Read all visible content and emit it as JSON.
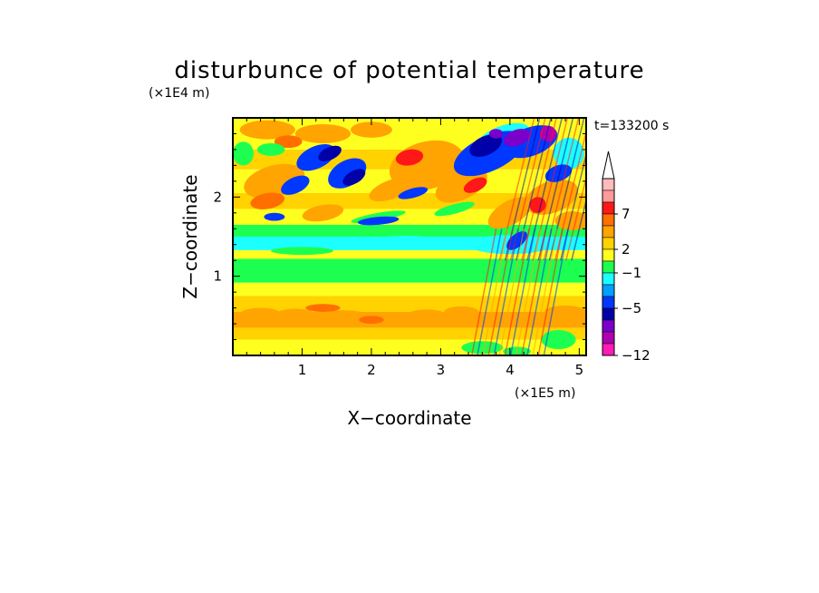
{
  "chart_data": {
    "type": "heatmap",
    "title": "disturbunce of potential temperature",
    "xlabel": "X−coordinate",
    "ylabel": "Z−coordinate",
    "x_unit": "(×1E5 m)",
    "y_unit": "(×1E4 m)",
    "time_label": "t=133200 s",
    "xlim": [
      0,
      5.1
    ],
    "ylim": [
      0,
      3.0
    ],
    "x_ticks": [
      1,
      2,
      3,
      4,
      5
    ],
    "y_ticks": [
      1,
      2
    ],
    "colorbar": {
      "labels": [
        "7",
        "2",
        "−1",
        "−5",
        "−12"
      ],
      "colors": [
        "#ffffff",
        "#ffbcbc",
        "#ff9a9a",
        "#ff1818",
        "#ff6f00",
        "#ffa400",
        "#ffd200",
        "#ffff1f",
        "#1cff50",
        "#1cffff",
        "#00a0ff",
        "#0038ff",
        "#0000a8",
        "#7a00cc",
        "#b000b0",
        "#ff1bb6"
      ],
      "extend_max": true
    },
    "palette": {
      "yellow": "#ffff1f",
      "green": "#1cff50",
      "cyan": "#1cffff",
      "light_orange": "#ffd200",
      "orange": "#ffa400",
      "dark_orange": "#ff6f00",
      "red": "#ff1818",
      "blue": "#0038ff",
      "navy": "#0000a8",
      "purple": "#7a00cc",
      "magenta": "#b000b0"
    },
    "field_description": "layered banded field: yellow/orange bands below z=0.9, green band near z=1.0–1.1, cyan near 1.3–1.5, alternating orange and blue cells above z=1.5 tilted diagonally, gravity-wave streaks near x=3.5–4.5"
  }
}
